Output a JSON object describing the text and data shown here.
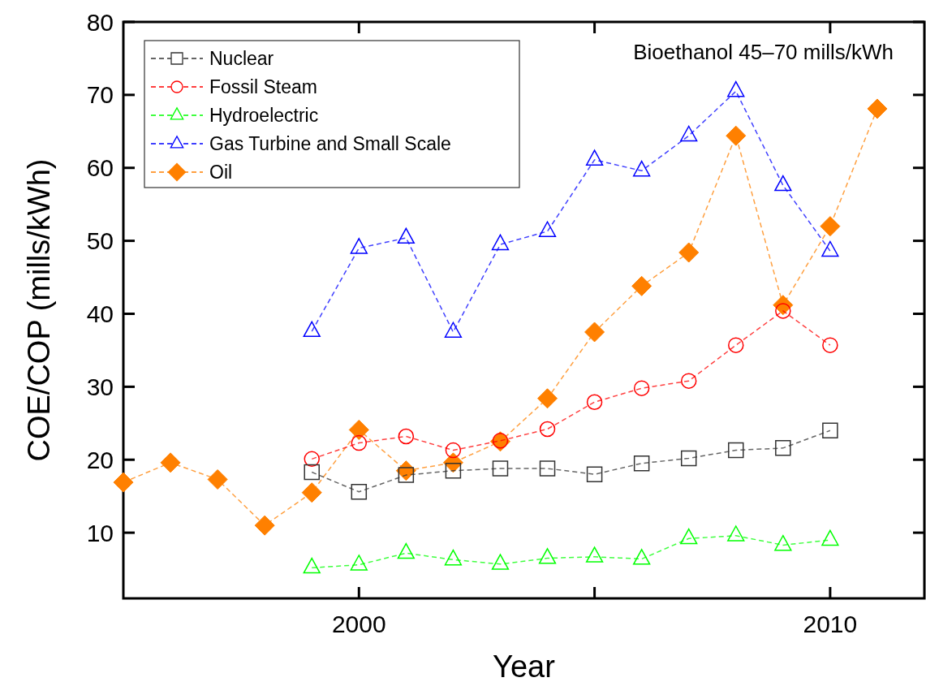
{
  "chart_data": {
    "type": "line",
    "xlabel": "Year",
    "ylabel": "COE/COP (mills/kWh)",
    "x": [
      1999,
      2000,
      2001,
      2002,
      2003,
      2004,
      2005,
      2006,
      2007,
      2008,
      2009,
      2010
    ],
    "xlim": [
      1995,
      2012
    ],
    "xticks": [
      2000,
      {
        "value": 2005,
        "label": null
      },
      2010
    ],
    "ylim": [
      1,
      80
    ],
    "yticks": [
      10,
      20,
      30,
      40,
      50,
      60,
      70,
      80
    ],
    "legend": "top left",
    "line_style": "dashed",
    "annotations": [
      "Bioethanol 45–70 mills/kWh"
    ],
    "series": [
      {
        "name": "Nuclear",
        "color": "#333333",
        "marker": "square",
        "values": [
          18.3,
          15.6,
          17.9,
          18.5,
          18.8,
          18.8,
          18.0,
          19.5,
          20.2,
          21.3,
          21.6,
          24.0
        ]
      },
      {
        "name": "Fossil Steam",
        "color": "#ff0000",
        "marker": "circle",
        "values": [
          20.1,
          22.3,
          23.2,
          21.3,
          22.6,
          24.2,
          27.9,
          29.8,
          30.8,
          35.7,
          40.4,
          35.7
        ]
      },
      {
        "name": "Hydroelectric",
        "color": "#00ff00",
        "marker": "triangle",
        "values": [
          5.2,
          5.6,
          7.2,
          6.3,
          5.7,
          6.5,
          6.7,
          6.4,
          9.2,
          9.6,
          8.3,
          9.0
        ]
      },
      {
        "name": "Gas Turbine and Small Scale",
        "color": "#0000ff",
        "marker": "triangle",
        "values": [
          37.6,
          49.0,
          50.4,
          37.5,
          49.5,
          51.3,
          61.1,
          59.6,
          64.4,
          70.5,
          57.6,
          48.6
        ]
      },
      {
        "name": "Oil",
        "color": "#ff8000",
        "marker": "diamond",
        "x": [
          1995,
          1996,
          1997,
          1998,
          1999,
          2000,
          2001,
          2002,
          2003,
          2004,
          2005,
          2006,
          2007,
          2008,
          2009,
          2010,
          2011
        ],
        "values": [
          16.9,
          19.6,
          17.3,
          11.0,
          15.5,
          24.1,
          18.5,
          19.6,
          22.5,
          28.4,
          37.5,
          43.8,
          48.4,
          64.4,
          41.2,
          52.0,
          68.1
        ]
      }
    ]
  }
}
